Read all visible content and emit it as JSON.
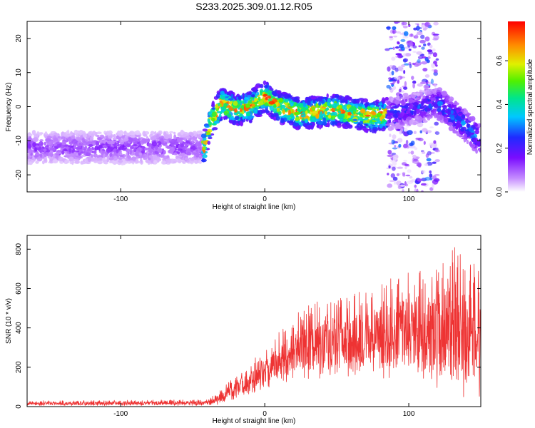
{
  "chart_data": [
    {
      "type": "heatmap",
      "title": "S233.2025.309.01.12.R05",
      "xlabel": "Height of straight line (km)",
      "ylabel": "Frequency (Hz)",
      "xlim": [
        -165,
        150
      ],
      "ylim": [
        -25,
        25
      ],
      "xticks": [
        -100,
        0,
        100
      ],
      "yticks": [
        -20,
        -10,
        0,
        10,
        20
      ],
      "colorbar": {
        "label": "Normalized spectral amplitude",
        "range": [
          0,
          0.78
        ],
        "ticks": [
          0.0,
          0.2,
          0.4,
          0.6
        ]
      },
      "regions": [
        {
          "x_range": [
            -165,
            -43
          ],
          "description": "broadband noise",
          "amplitude": [
            0.02,
            0.15
          ]
        },
        {
          "x_range": [
            -43,
            85
          ],
          "description": "signal band near 0 Hz",
          "amplitude": [
            0.1,
            0.78
          ]
        },
        {
          "x_range": [
            85,
            120
          ],
          "description": "noise with signal band",
          "amplitude": [
            0.02,
            0.3
          ]
        },
        {
          "x_range": [
            120,
            150
          ],
          "description": "signal band near -3 Hz",
          "amplitude": [
            0.05,
            0.35
          ]
        }
      ],
      "signal_center_freq": [
        {
          "x": -42,
          "freq": -12
        },
        {
          "x": -38,
          "freq": -5
        },
        {
          "x": -30,
          "freq": 1
        },
        {
          "x": -20,
          "freq": -1
        },
        {
          "x": -10,
          "freq": 0
        },
        {
          "x": 0,
          "freq": 3
        },
        {
          "x": 10,
          "freq": 0
        },
        {
          "x": 25,
          "freq": -2
        },
        {
          "x": 50,
          "freq": -1
        },
        {
          "x": 75,
          "freq": -3
        },
        {
          "x": 100,
          "freq": -1
        },
        {
          "x": 120,
          "freq": 1
        },
        {
          "x": 135,
          "freq": -4
        },
        {
          "x": 148,
          "freq": -9
        }
      ]
    },
    {
      "type": "line",
      "xlabel": "Height of straight line (km)",
      "ylabel": "SNR (10 * v/v)",
      "xlim": [
        -165,
        150
      ],
      "ylim": [
        0,
        870
      ],
      "xticks": [
        -100,
        0,
        100
      ],
      "yticks": [
        0,
        200,
        400,
        600,
        800
      ],
      "color": "#ee3333",
      "envelope": [
        {
          "x": -165,
          "low": 5,
          "high": 30
        },
        {
          "x": -40,
          "low": 5,
          "high": 35
        },
        {
          "x": -32,
          "low": 8,
          "high": 75
        },
        {
          "x": -20,
          "low": 40,
          "high": 160
        },
        {
          "x": -10,
          "low": 60,
          "high": 220
        },
        {
          "x": 0,
          "low": 90,
          "high": 300
        },
        {
          "x": 10,
          "low": 120,
          "high": 380
        },
        {
          "x": 20,
          "low": 130,
          "high": 460
        },
        {
          "x": 30,
          "low": 140,
          "high": 520
        },
        {
          "x": 50,
          "low": 150,
          "high": 560
        },
        {
          "x": 70,
          "low": 150,
          "high": 600
        },
        {
          "x": 85,
          "low": 140,
          "high": 640
        },
        {
          "x": 100,
          "low": 120,
          "high": 700
        },
        {
          "x": 115,
          "low": 80,
          "high": 740
        },
        {
          "x": 130,
          "low": 40,
          "high": 830
        },
        {
          "x": 140,
          "low": 30,
          "high": 760
        },
        {
          "x": 150,
          "low": 30,
          "high": 720
        }
      ]
    }
  ]
}
